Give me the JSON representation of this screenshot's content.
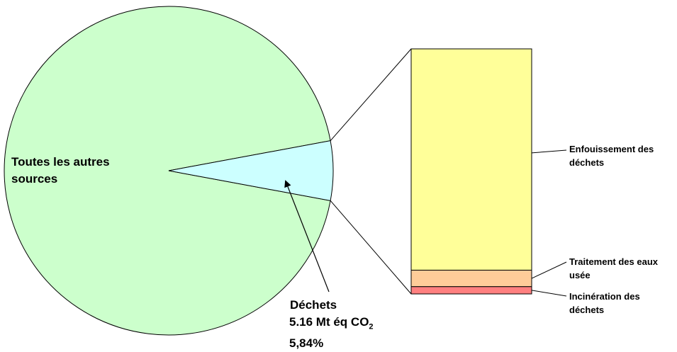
{
  "chart_data": {
    "type": "bar-of-pie",
    "pie": {
      "slices": [
        {
          "name": "Toutes les autres sources",
          "line1": "Toutes les autres",
          "line2": "sources",
          "value_pct": 94.16,
          "color": "#CCFFCC"
        },
        {
          "name": "Déchets",
          "value_pct": 5.84,
          "value_mt": 5.16,
          "amount_text": "5.16 Mt éq CO",
          "unit_subscript": "2",
          "percent_text": "5,84%",
          "color": "#CCFFFF"
        }
      ]
    },
    "stacked_bar": {
      "segments": [
        {
          "name": "Enfouissement des déchets",
          "line1": "Enfouissement des",
          "line2": "déchets",
          "share": 0.885,
          "color": "#FFFF99"
        },
        {
          "name": "Traitement des eaux usée",
          "line1": "Traitement des eaux",
          "line2": "usée",
          "share": 0.066,
          "color": "#FFCC99"
        },
        {
          "name": "Incinération des déchets",
          "line1": "Incinération des",
          "line2": "déchets",
          "share": 0.029,
          "color": "#FF8080"
        }
      ]
    }
  }
}
